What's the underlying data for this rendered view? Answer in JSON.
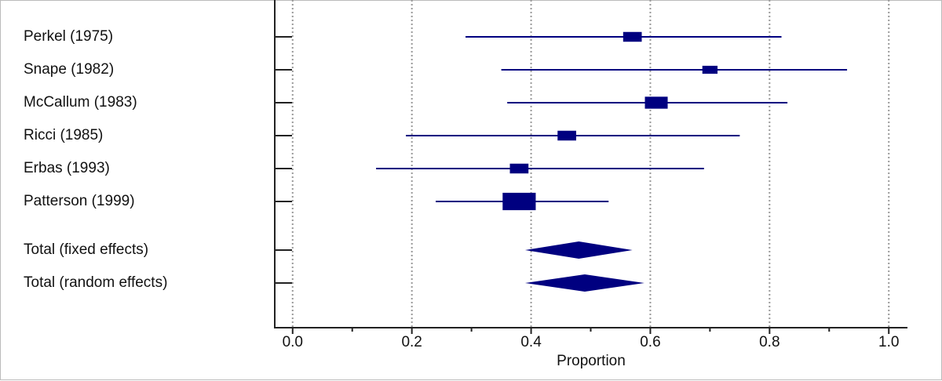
{
  "chart_data": {
    "type": "forest",
    "categories": [
      "Perkel (1975)",
      "Snape (1982)",
      "McCallum (1983)",
      "Ricci (1985)",
      "Erbas (1993)",
      "Patterson (1999)"
    ],
    "values": [
      0.57,
      0.7,
      0.61,
      0.46,
      0.38,
      0.38
    ],
    "ci_lower": [
      0.29,
      0.35,
      0.36,
      0.19,
      0.14,
      0.24
    ],
    "ci_upper": [
      0.82,
      0.93,
      0.83,
      0.75,
      0.69,
      0.53
    ],
    "weights": [
      12,
      8,
      18,
      12,
      12,
      38
    ],
    "totals": {
      "categories": [
        "Total (fixed effects)",
        "Total (random effects)"
      ],
      "values": [
        0.48,
        0.49
      ],
      "ci_lower": [
        0.39,
        0.39
      ],
      "ci_upper": [
        0.57,
        0.59
      ]
    },
    "xlabel": "Proportion",
    "xlim": [
      -0.03,
      1.03
    ],
    "xticks": [
      {
        "value": 0,
        "label": "0.0"
      },
      0.2,
      0.4,
      0.6,
      0.8,
      {
        "value": 1,
        "label": "1.0"
      }
    ],
    "minor_xticks": [
      0.1,
      0.3,
      0.5,
      0.7,
      0.9
    ],
    "grid": true,
    "color": "#000080"
  }
}
